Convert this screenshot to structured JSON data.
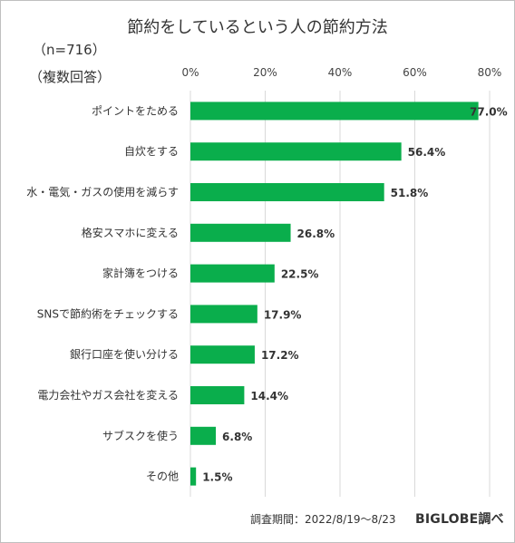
{
  "header": {
    "title": "節約をしているという人の節約方法",
    "n_note": "（n=716）",
    "multi_note": "（複数回答）"
  },
  "footer": {
    "source": "調査期間：2022/8/19〜8/23",
    "brand": "BIGLOBE調べ"
  },
  "colors": {
    "bar": "#0aae4c",
    "grid": "#d9d9d9"
  },
  "chart_data": {
    "type": "bar",
    "orientation": "horizontal",
    "categories": [
      "ポイントをためる",
      "自炊をする",
      "水・電気・ガスの使用を減らす",
      "格安スマホに変える",
      "家計簿をつける",
      "SNSで節約術をチェックする",
      "銀行口座を使い分ける",
      "電力会社やガス会社を変える",
      "サブスクを使う",
      "その他"
    ],
    "values": [
      77.0,
      56.4,
      51.8,
      26.8,
      22.5,
      17.9,
      17.2,
      14.4,
      6.8,
      1.5
    ],
    "value_labels": [
      "77.0%",
      "56.4%",
      "51.8%",
      "26.8%",
      "22.5%",
      "17.9%",
      "17.2%",
      "14.4%",
      "6.8%",
      "1.5%"
    ],
    "xlim": [
      0,
      80
    ],
    "xticks": [
      0,
      20,
      40,
      60,
      80
    ],
    "xtick_labels": [
      "0%",
      "20%",
      "40%",
      "60%",
      "80%"
    ],
    "grid": true,
    "legend": false
  }
}
